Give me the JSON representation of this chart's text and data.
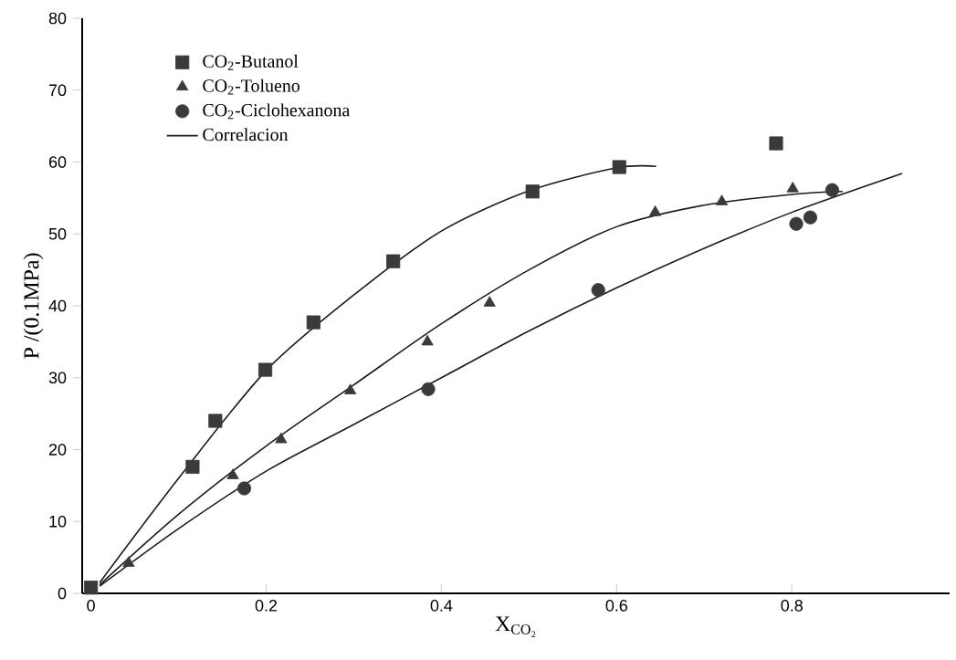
{
  "chart_data": {
    "type": "scatter",
    "xlabel": "X$_{CO₂}$",
    "ylabel": "P /(0.1MPa)",
    "xlim": [
      -0.01,
      0.98
    ],
    "ylim": [
      0,
      80
    ],
    "xticks": [
      0,
      0.2,
      0.4,
      0.6,
      0.8
    ],
    "yticks": [
      0,
      10,
      20,
      30,
      40,
      50,
      60,
      70,
      80
    ],
    "legend": "top left",
    "grid": false,
    "series": [
      {
        "name": "CO$_{2}$-Butanol",
        "marker": "square",
        "color": "#3a3a3a",
        "x": [
          0,
          0.116,
          0.142,
          0.199,
          0.254,
          0.345,
          0.504,
          0.603,
          0.782
        ],
        "values": [
          0.8,
          17.6,
          24.0,
          31.1,
          37.7,
          46.2,
          55.9,
          59.3,
          62.6
        ]
      },
      {
        "name": "CO$_{2}$-Tolueno",
        "marker": "triangle",
        "color": "#3a3a3a",
        "x": [
          0.043,
          0.162,
          0.217,
          0.296,
          0.384,
          0.455,
          0.644,
          0.72,
          0.801
        ],
        "values": [
          4.2,
          16.4,
          21.4,
          28.2,
          35.0,
          40.4,
          53.0,
          54.5,
          56.3
        ]
      },
      {
        "name": "CO$_{2}$-Ciclohexanona",
        "marker": "circle",
        "color": "#3a3a3a",
        "x": [
          0.175,
          0.385,
          0.579,
          0.805,
          0.821,
          0.846
        ],
        "values": [
          14.6,
          28.4,
          42.2,
          51.4,
          52.3,
          56.1
        ]
      },
      {
        "name": "Correlacion",
        "type": "line",
        "marker": "none",
        "line_style": "solid",
        "color": "#1a1a1a",
        "x": [
          0.01,
          0.1,
          0.2,
          0.3,
          0.4,
          0.5,
          0.6,
          0.645
        ],
        "values": [
          1.5,
          16,
          31,
          41.5,
          50.4,
          56,
          59.2,
          59.4
        ]
      },
      {
        "type": "line",
        "marker": "none",
        "line_style": "solid",
        "color": "#1a1a1a",
        "x": [
          0.01,
          0.1,
          0.2,
          0.3,
          0.4,
          0.5,
          0.6,
          0.7,
          0.8,
          0.858
        ],
        "values": [
          1.2,
          11,
          20.5,
          29,
          37.5,
          45,
          51,
          54,
          55.5,
          55.9
        ]
      },
      {
        "type": "line",
        "marker": "none",
        "line_style": "solid",
        "color": "#1a1a1a",
        "x": [
          0.01,
          0.1,
          0.2,
          0.3,
          0.4,
          0.5,
          0.6,
          0.7,
          0.8,
          0.926
        ],
        "values": [
          1,
          9,
          17,
          23.5,
          30,
          36.5,
          42.5,
          48,
          53,
          58.4
        ]
      }
    ]
  }
}
